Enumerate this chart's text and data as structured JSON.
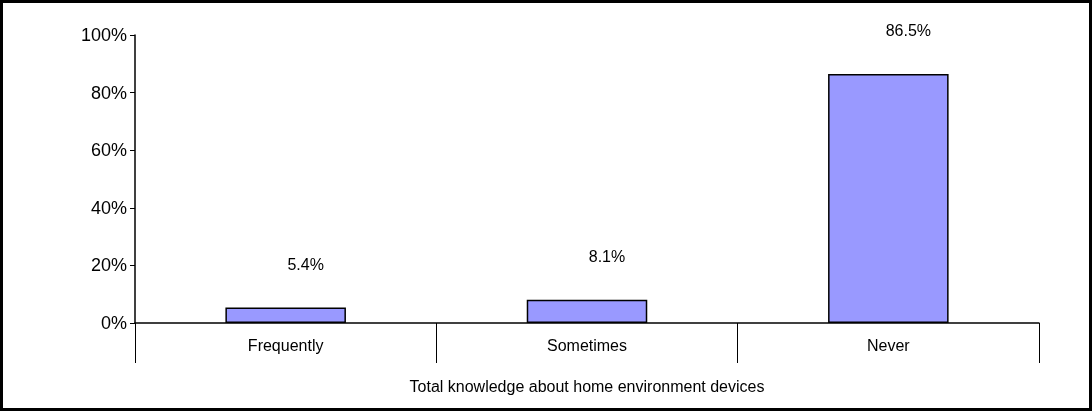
{
  "chart_data": {
    "type": "bar",
    "xlabel": "Total knowledge about home environment devices",
    "categories": [
      "Frequently",
      "Sometimes",
      "Never"
    ],
    "values": [
      5.4,
      8.1,
      86.5
    ],
    "color": "#9999ff",
    "value_labels": [
      "5.4%",
      "8.1%",
      "86.5%"
    ],
    "ylim": [
      0,
      100
    ],
    "yticks": [
      {
        "value": 0,
        "label": "0%"
      },
      {
        "value": 20,
        "label": "20%"
      },
      {
        "value": 40,
        "label": "40%"
      },
      {
        "value": 60,
        "label": "60%"
      },
      {
        "value": 80,
        "label": "80%"
      },
      {
        "value": 100,
        "label": "100%"
      }
    ],
    "grid": false
  }
}
